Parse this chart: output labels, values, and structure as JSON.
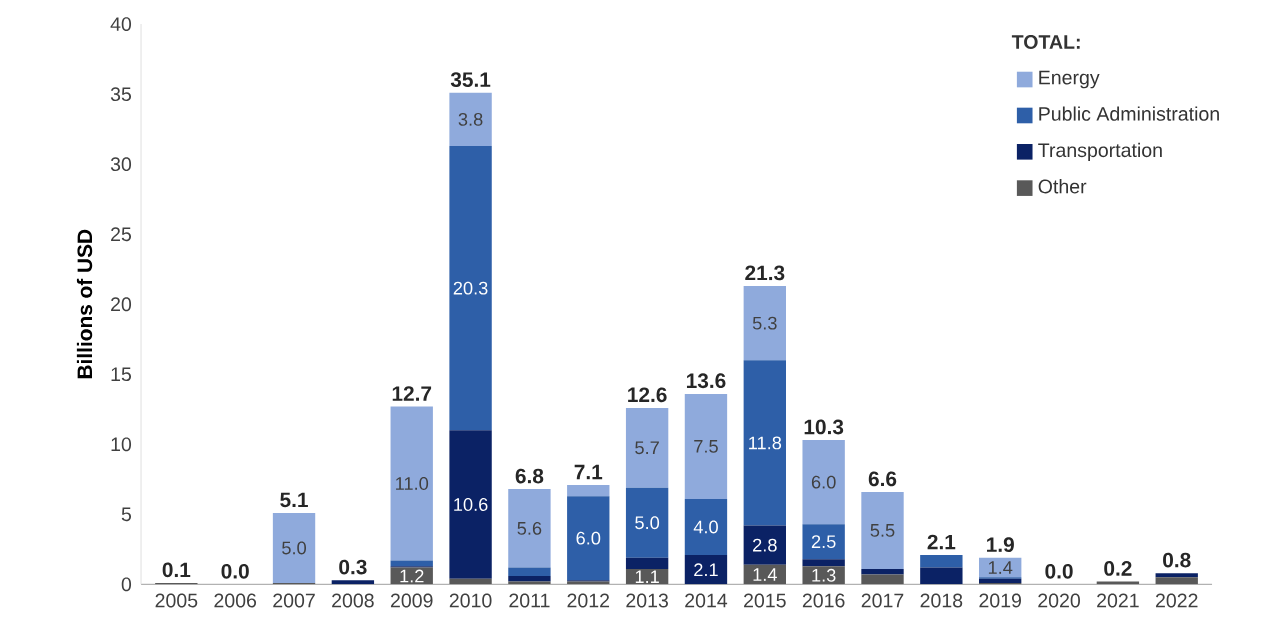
{
  "chart_data": {
    "type": "bar",
    "stacked": true,
    "ylabel": "Billions of USD",
    "legend_title": "TOTAL:",
    "legend": "top right",
    "categories": [
      "2005",
      "2006",
      "2007",
      "2008",
      "2009",
      "2010",
      "2011",
      "2012",
      "2013",
      "2014",
      "2015",
      "2016",
      "2017",
      "2018",
      "2019",
      "2020",
      "2021",
      "2022"
    ],
    "ylim": [
      0,
      40
    ],
    "yticks": [
      0,
      5,
      10,
      15,
      20,
      25,
      30,
      35,
      40
    ],
    "series": [
      {
        "name": "Other",
        "color": "#595959",
        "values": [
          0.1,
          0,
          0.1,
          0,
          1.2,
          0.4,
          0.2,
          0.2,
          1.1,
          0,
          1.4,
          1.3,
          0.7,
          0,
          0.1,
          0,
          0.2,
          0.5
        ],
        "value_labels": [
          null,
          null,
          null,
          null,
          "1.2",
          null,
          null,
          null,
          "1.1",
          null,
          "1.4",
          "1.3",
          null,
          null,
          null,
          null,
          null,
          null
        ]
      },
      {
        "name": "Transportation",
        "color": "#0b2265",
        "values": [
          0,
          0,
          0,
          0.3,
          0.1,
          10.6,
          0.4,
          0.1,
          0.8,
          2.1,
          2.8,
          0.5,
          0.4,
          1.2,
          0.3,
          0,
          0,
          0.3
        ],
        "value_labels": [
          null,
          null,
          null,
          null,
          null,
          "10.6",
          null,
          null,
          null,
          "2.1",
          "2.8",
          null,
          null,
          null,
          null,
          null,
          null,
          null
        ]
      },
      {
        "name": "Public Administration",
        "color": "#2e5fa8",
        "values": [
          0,
          0,
          0,
          0,
          0.4,
          20.3,
          0.6,
          6.0,
          5.0,
          4.0,
          11.8,
          2.5,
          0,
          0.9,
          0.1,
          0,
          0,
          0
        ],
        "value_labels": [
          null,
          null,
          null,
          null,
          null,
          "20.3",
          null,
          "6.0",
          "5.0",
          "4.0",
          "11.8",
          "2.5",
          null,
          null,
          null,
          null,
          null,
          null
        ]
      },
      {
        "name": "Energy",
        "color": "#8faadc",
        "values": [
          0,
          0,
          5.0,
          0,
          11.0,
          3.8,
          5.6,
          0.8,
          5.7,
          7.5,
          5.3,
          6.0,
          5.5,
          0,
          1.4,
          0,
          0,
          0
        ],
        "value_labels": [
          null,
          null,
          "5.0",
          null,
          "11.0",
          "3.8",
          "5.6",
          null,
          "5.7",
          "7.5",
          "5.3",
          "6.0",
          "5.5",
          null,
          "1.4",
          null,
          null,
          null
        ]
      }
    ],
    "totals": [
      "0.1",
      "0.0",
      "5.1",
      "0.3",
      "12.7",
      "35.1",
      "6.8",
      "7.1",
      "12.6",
      "13.6",
      "21.3",
      "10.3",
      "6.6",
      "2.1",
      "1.9",
      "0.0",
      "0.2",
      "0.8"
    ]
  }
}
